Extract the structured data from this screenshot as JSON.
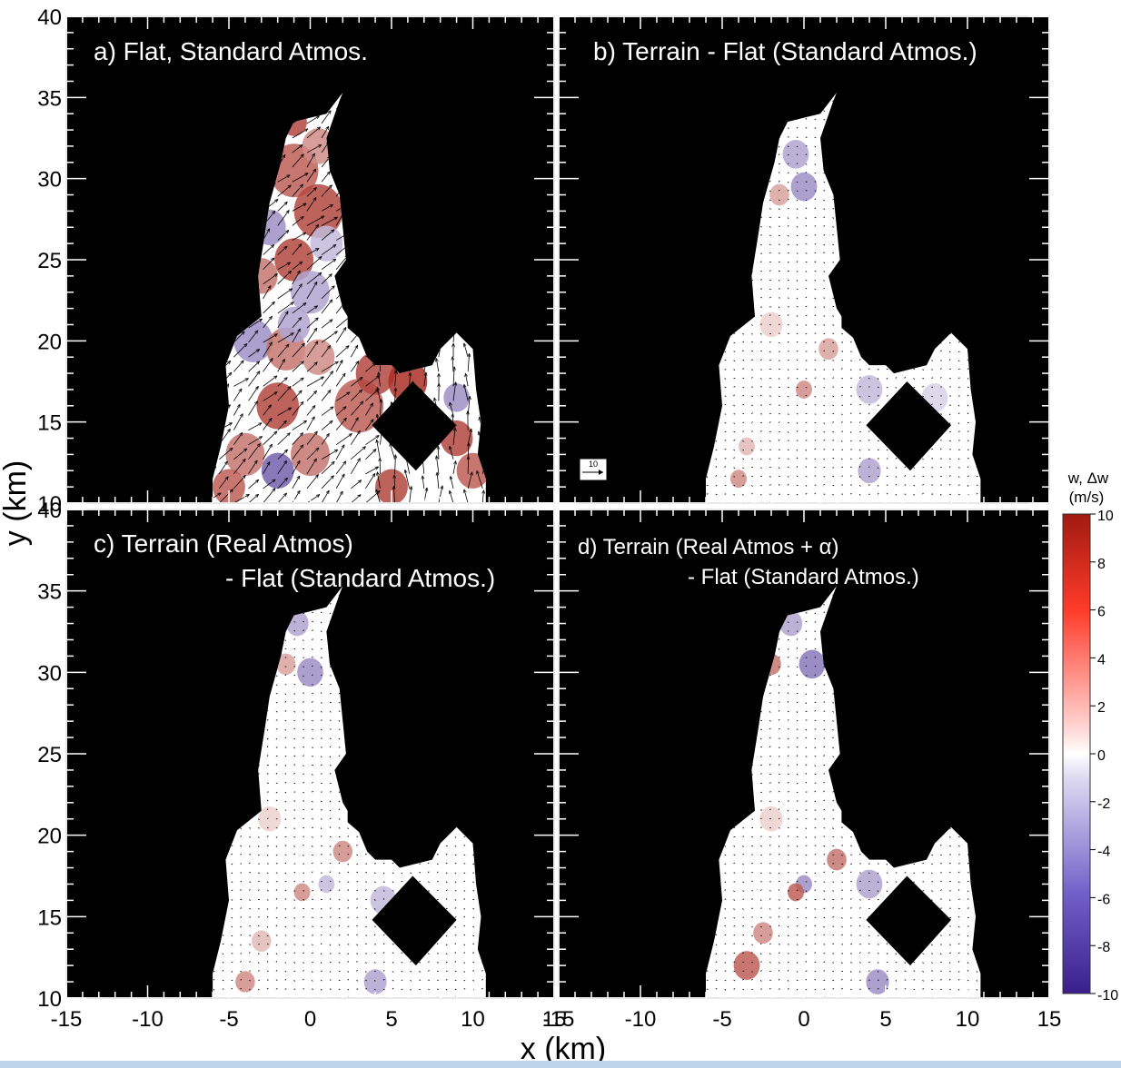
{
  "figure": {
    "shared_xlabel": "x (km)",
    "shared_ylabel": "y (km)",
    "x_ticks": [
      -15,
      -10,
      -5,
      0,
      5,
      10,
      15
    ],
    "y_ticks": [
      10,
      15,
      20,
      25,
      30,
      35,
      40
    ],
    "vector_key_label": "10"
  },
  "colorbar": {
    "title_line1": "w, Δw",
    "title_line2": "(m/s)",
    "ticks": [
      10,
      8,
      6,
      4,
      2,
      0,
      -2,
      -4,
      -6,
      -8,
      -10
    ],
    "range": [
      -10,
      10
    ],
    "colors": {
      "low": "#3a1f8c",
      "mid": "#ffffff",
      "high": "#a11a10"
    }
  },
  "chart_data": [
    {
      "type": "heatmap",
      "panel_label_lines": [
        "a) Flat, Standard Atmos."
      ],
      "xlabel": "x (km)",
      "ylabel": "y (km)",
      "xlim": [
        -15,
        15
      ],
      "ylim": [
        10,
        40
      ],
      "background": "#000000",
      "vectors": "large wind vectors"
    },
    {
      "type": "heatmap",
      "panel_label_lines": [
        "b) Terrain - Flat (Standard Atmos.)"
      ],
      "xlabel": "x (km)",
      "ylabel": "y (km)",
      "xlim": [
        -15,
        15
      ],
      "ylim": [
        10,
        40
      ],
      "background": "#000000",
      "vectors": "small difference vectors"
    },
    {
      "type": "heatmap",
      "panel_label_lines": [
        "c) Terrain (Real Atmos)",
        "- Flat (Standard Atmos.)"
      ],
      "xlabel": "x (km)",
      "ylabel": "y (km)",
      "xlim": [
        -15,
        15
      ],
      "ylim": [
        10,
        40
      ],
      "background": "#000000",
      "vectors": "small difference vectors"
    },
    {
      "type": "heatmap",
      "panel_label_lines": [
        "d) Terrain (Real Atmos + α)",
        "- Flat (Standard Atmos.)"
      ],
      "xlabel": "x (km)",
      "ylabel": "y (km)",
      "xlim": [
        -15,
        15
      ],
      "ylim": [
        10,
        40
      ],
      "background": "#000000",
      "vectors": "small difference vectors"
    }
  ]
}
